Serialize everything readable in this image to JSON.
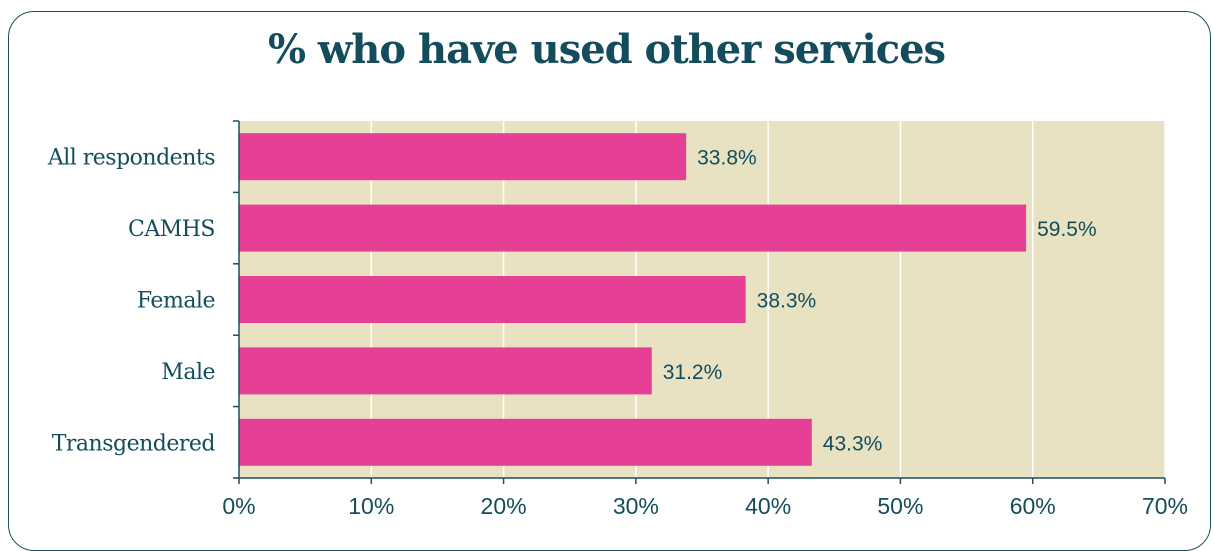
{
  "chart_data": {
    "type": "bar",
    "orientation": "horizontal",
    "title": "% who have used other services",
    "xlabel": "",
    "ylabel": "",
    "categories": [
      "All respondents",
      "CAMHS",
      "Female",
      "Male",
      "Transgendered"
    ],
    "values": [
      33.8,
      59.5,
      38.3,
      31.2,
      43.3
    ],
    "value_labels": [
      "33.8%",
      "59.5%",
      "38.3%",
      "31.2%",
      "43.3%"
    ],
    "xlim": [
      0,
      70
    ],
    "x_ticks": [
      0,
      10,
      20,
      30,
      40,
      50,
      60,
      70
    ],
    "x_tick_labels": [
      "0%",
      "10%",
      "20%",
      "30%",
      "40%",
      "50%",
      "60%",
      "70%"
    ],
    "grid": "vertical",
    "legend": "none",
    "colors": {
      "bar": "#e63f96",
      "plot_background": "#e9e2c2",
      "text": "#134d5c",
      "gridline": "#ffffff",
      "axis": "#1d4f5e"
    }
  }
}
